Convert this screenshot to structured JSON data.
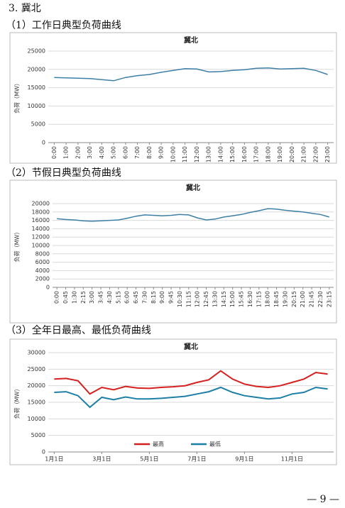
{
  "section_title": "3. 冀北",
  "subtitles": [
    "（1）工作日典型负荷曲线",
    "（2）节假日典型负荷曲线",
    "（3）全年日最高、最低负荷曲线"
  ],
  "page_number": "— 9 —",
  "chart_data": [
    {
      "type": "line",
      "title": "冀北",
      "y_label": "负荷（MW）",
      "categories": [
        "0:00",
        "1:00",
        "2:00",
        "3:00",
        "4:00",
        "5:00",
        "6:00",
        "7:00",
        "8:00",
        "9:00",
        "10:00",
        "11:00",
        "12:00",
        "13:00",
        "14:00",
        "15:00",
        "16:00",
        "17:00",
        "18:00",
        "19:00",
        "20:00",
        "21:00",
        "22:00",
        "23:00"
      ],
      "values": [
        17800,
        17700,
        17600,
        17500,
        17200,
        16900,
        17800,
        18300,
        18600,
        19200,
        19700,
        20200,
        20100,
        19300,
        19400,
        19700,
        19900,
        20300,
        20400,
        20100,
        20200,
        20300,
        19700,
        18600
      ],
      "color": "#3d7fa6",
      "ylim": [
        0,
        25000
      ],
      "yticks": [
        0,
        5000,
        10000,
        15000,
        20000,
        25000
      ],
      "grid": true
    },
    {
      "type": "line",
      "title": "冀北",
      "y_label": "负荷（MW）",
      "categories": [
        "0:00",
        "0:45",
        "1:30",
        "2:15",
        "3:00",
        "3:45",
        "4:30",
        "5:15",
        "6:00",
        "6:45",
        "7:30",
        "8:15",
        "9:00",
        "9:45",
        "10:30",
        "11:15",
        "12:00",
        "12:45",
        "13:30",
        "14:15",
        "15:00",
        "15:45",
        "16:30",
        "17:15",
        "18:00",
        "18:45",
        "19:30",
        "20:15",
        "21:00",
        "21:45",
        "22:30",
        "23:15"
      ],
      "values": [
        16400,
        16200,
        16100,
        15900,
        15800,
        15900,
        16000,
        16100,
        16500,
        17000,
        17300,
        17200,
        17100,
        17200,
        17400,
        17300,
        16600,
        16100,
        16300,
        16800,
        17100,
        17400,
        17900,
        18300,
        18800,
        18700,
        18400,
        18200,
        18000,
        17700,
        17400,
        16800
      ],
      "color": "#3d7fa6",
      "ylim": [
        0,
        20000
      ],
      "yticks": [
        0,
        2000,
        4000,
        6000,
        8000,
        10000,
        12000,
        14000,
        16000,
        18000,
        20000
      ],
      "grid": true
    },
    {
      "type": "line",
      "title": "冀北",
      "y_label": "负荷（MW）",
      "categories": [
        "1月1日",
        null,
        null,
        null,
        "3月1日",
        null,
        null,
        null,
        "5月1日",
        null,
        null,
        null,
        "7月1日",
        null,
        null,
        null,
        "9月1日",
        null,
        null,
        null,
        "11月1日",
        null,
        null,
        null
      ],
      "series": [
        {
          "name": "最高",
          "color": "#d62020",
          "values": [
            22000,
            22200,
            21500,
            17500,
            19500,
            18800,
            19800,
            19300,
            19200,
            19500,
            19700,
            20000,
            21000,
            21800,
            24500,
            22000,
            20500,
            19800,
            19500,
            20000,
            21000,
            22000,
            24000,
            23500
          ]
        },
        {
          "name": "最低",
          "color": "#1e7fa6",
          "values": [
            18000,
            18200,
            17000,
            13500,
            16500,
            15800,
            16600,
            16000,
            16000,
            16200,
            16500,
            16800,
            17500,
            18200,
            19500,
            18000,
            17000,
            16500,
            16000,
            16300,
            17500,
            18000,
            19500,
            19000
          ]
        }
      ],
      "ylim": [
        0,
        30000
      ],
      "yticks": [
        0,
        5000,
        10000,
        15000,
        20000,
        25000,
        30000
      ],
      "grid": true,
      "legend": "bottom"
    }
  ]
}
